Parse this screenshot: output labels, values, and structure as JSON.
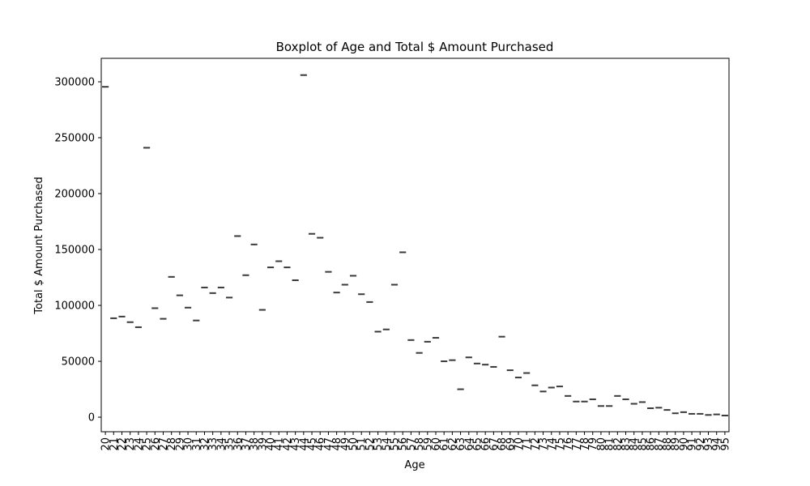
{
  "chart_data": {
    "type": "boxplot",
    "title": "Boxplot of Age and Total $ Amount Purchased",
    "xlabel": "Age",
    "ylabel": "Total $ Amount Purchased",
    "ylim": [
      -13000,
      321000
    ],
    "yticks": [
      0,
      50000,
      100000,
      150000,
      200000,
      250000,
      300000
    ],
    "ytick_labels": [
      "0",
      "50000",
      "100000",
      "150000",
      "200000",
      "250000",
      "300000"
    ],
    "categories": [
      "20",
      "21",
      "22",
      "23",
      "24",
      "25",
      "26",
      "27",
      "28",
      "29",
      "30",
      "31",
      "32",
      "33",
      "34",
      "35",
      "36",
      "37",
      "38",
      "39",
      "40",
      "41",
      "42",
      "43",
      "44",
      "45",
      "46",
      "47",
      "48",
      "49",
      "50",
      "51",
      "52",
      "53",
      "54",
      "55",
      "56",
      "57",
      "58",
      "59",
      "60",
      "61",
      "62",
      "63",
      "64",
      "65",
      "66",
      "67",
      "68",
      "69",
      "70",
      "71",
      "72",
      "73",
      "74",
      "75",
      "76",
      "77",
      "78",
      "79",
      "80",
      "81",
      "82",
      "83",
      "84",
      "85",
      "86",
      "87",
      "88",
      "89",
      "90",
      "91",
      "92",
      "93",
      "94",
      "95"
    ],
    "values": [
      295500,
      88500,
      90000,
      85000,
      80500,
      241000,
      97500,
      88000,
      125500,
      109000,
      98000,
      86500,
      116000,
      111000,
      116000,
      107000,
      162000,
      127000,
      154500,
      96000,
      134000,
      139500,
      134000,
      122500,
      306000,
      164000,
      160500,
      130000,
      111500,
      118500,
      126500,
      110000,
      103000,
      76500,
      78500,
      118500,
      147500,
      69000,
      57500,
      67500,
      71000,
      50000,
      51000,
      25000,
      53500,
      48000,
      47000,
      45000,
      72000,
      42000,
      35500,
      39500,
      28500,
      23000,
      26500,
      27500,
      19000,
      14000,
      14000,
      16000,
      10000,
      10000,
      19000,
      16000,
      12000,
      13500,
      8000,
      8500,
      6500,
      3500,
      4500,
      3000,
      3000,
      2000,
      2500,
      1500
    ],
    "grid": false,
    "color": "#3a3a3a"
  }
}
